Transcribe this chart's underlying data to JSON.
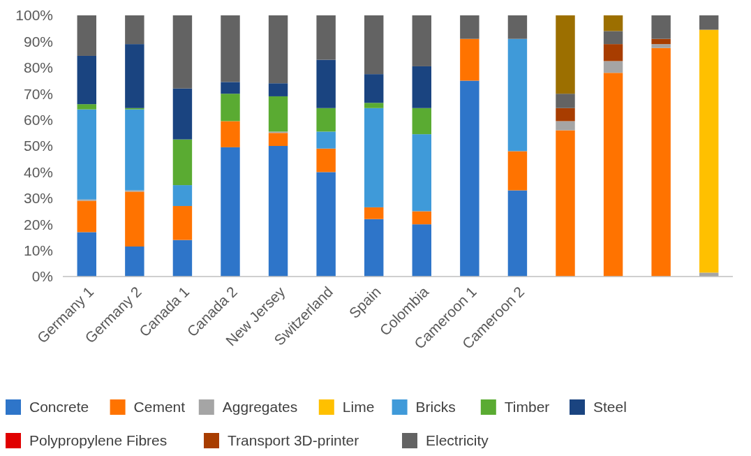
{
  "chart_data": {
    "type": "bar",
    "stacked": true,
    "categories": [
      "Germany 1",
      "Germany 2",
      "Canada 1",
      "Canada 2",
      "New Jersey",
      "Switzerland",
      "Spain",
      "Colombia",
      "Cameroon 1",
      "Cameroon 2",
      null,
      null,
      null,
      null
    ],
    "ylim": [
      0,
      100
    ],
    "yticks": [
      {
        "value": 0,
        "label": "0%"
      },
      {
        "value": 10,
        "label": "10%"
      },
      {
        "value": 20,
        "label": "20%"
      },
      {
        "value": 30,
        "label": "30%"
      },
      {
        "value": 40,
        "label": "40%"
      },
      {
        "value": 50,
        "label": "50%"
      },
      {
        "value": 60,
        "label": "60%"
      },
      {
        "value": 70,
        "label": "70%"
      },
      {
        "value": 80,
        "label": "80%"
      },
      {
        "value": 90,
        "label": "90%"
      },
      {
        "value": 100,
        "label": "100%"
      }
    ],
    "grid": false,
    "legend": "bottom",
    "series": [
      {
        "name": "Concrete",
        "color": "#2e75c9",
        "values": [
          17,
          11.5,
          14,
          49.5,
          50,
          40,
          22,
          20,
          75,
          33,
          null,
          null,
          null,
          null
        ]
      },
      {
        "name": "Cement",
        "color": "#ff7300",
        "values": [
          12,
          21,
          13,
          10,
          5,
          9,
          4.5,
          5,
          16,
          15,
          56,
          78,
          87.5,
          null
        ]
      },
      {
        "name": "Aggregates",
        "color": "#a5a5a5",
        "values": [
          0.5,
          0.5,
          null,
          null,
          0.5,
          null,
          null,
          null,
          null,
          null,
          3.5,
          4.5,
          1.5,
          1.5
        ]
      },
      {
        "name": "Lime",
        "color": "#ffc000",
        "values": [
          null,
          null,
          null,
          null,
          null,
          null,
          null,
          null,
          null,
          null,
          null,
          null,
          null,
          93
        ]
      },
      {
        "name": "Bricks",
        "color": "#3f9ad9",
        "values": [
          34.5,
          31,
          8,
          null,
          null,
          6.5,
          38,
          29.5,
          null,
          43,
          null,
          null,
          null,
          null
        ]
      },
      {
        "name": "Timber",
        "color": "#5aab32",
        "values": [
          2,
          0.5,
          17.5,
          10.5,
          13.5,
          9,
          2,
          10,
          null,
          null,
          null,
          null,
          null,
          null
        ]
      },
      {
        "name": "Steel",
        "color": "#1a4480",
        "values": [
          18.5,
          24.5,
          19.5,
          4.5,
          5,
          18.5,
          11,
          16,
          null,
          null,
          null,
          null,
          null,
          null
        ]
      },
      {
        "name": "Polypropylene Fibres",
        "color": "#e00000",
        "values": [
          null,
          null,
          null,
          null,
          null,
          null,
          null,
          null,
          null,
          null,
          null,
          null,
          null,
          null
        ]
      },
      {
        "name": "Transport 3D-printer",
        "color": "#a83d00",
        "values": [
          null,
          null,
          null,
          null,
          null,
          null,
          null,
          null,
          null,
          null,
          5,
          6.5,
          2,
          null
        ]
      },
      {
        "name": "Electricity",
        "color": "#636363",
        "values": [
          15.5,
          11,
          28,
          25.5,
          26,
          17,
          22.5,
          19.5,
          9,
          9,
          5.5,
          5,
          9,
          5.5
        ]
      },
      {
        "color": "#9c6f00",
        "values": [
          null,
          null,
          null,
          null,
          null,
          null,
          null,
          null,
          null,
          null,
          30,
          6,
          null,
          null
        ]
      }
    ]
  }
}
